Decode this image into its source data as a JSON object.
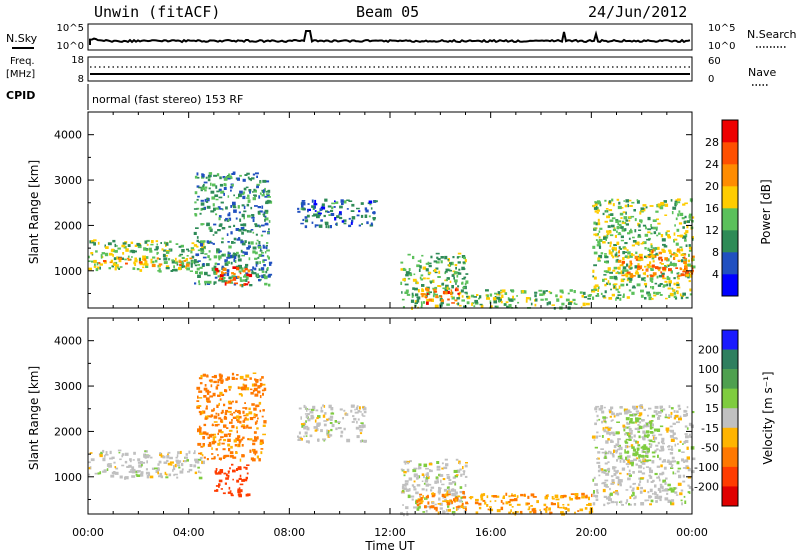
{
  "header": {
    "station": "Unwin (fitACF)",
    "beam": "Beam 05",
    "date": "24/Jun/2012"
  },
  "sky_panel": {
    "left_label": "N.Sky",
    "right_label": "N.Search",
    "left_ticks": [
      "10^5",
      "10^0"
    ],
    "right_ticks": [
      "10^5",
      "10^0"
    ]
  },
  "freq_panel": {
    "left_label_1": "Freq.",
    "left_label_2": "[MHz]",
    "right_label": "Nave",
    "left_ticks": [
      "18",
      "8"
    ],
    "right_ticks": [
      "60",
      "0"
    ]
  },
  "cpid": {
    "label": "CPID",
    "text": "normal (fast stereo) 153 RF"
  },
  "colors": {
    "power_scale": [
      "#0000ff",
      "#2050c0",
      "#2e8b57",
      "#5bc05b",
      "#ffcc00",
      "#ff8c00",
      "#ff5000",
      "#ee0000"
    ],
    "velocity_scale": [
      "#1a1aff",
      "#2f7f5f",
      "#4fa04f",
      "#7fcc3f",
      "#c0c0c0",
      "#ffb400",
      "#ff7800",
      "#ff3c00",
      "#e00000"
    ]
  },
  "chart_data": [
    {
      "type": "heatmap",
      "name": "power",
      "ylabel": "Slant Range [km]",
      "ylim": [
        180,
        4500
      ],
      "yticks": [
        1000,
        2000,
        3000,
        4000
      ],
      "xlim": [
        0,
        24
      ],
      "colorbar": {
        "label": "Power [dB]",
        "range": [
          0,
          32
        ],
        "ticks": [
          4,
          8,
          12,
          16,
          20,
          24,
          28
        ]
      },
      "regions": [
        {
          "t0": 0.0,
          "t1": 4.6,
          "r0": 1000,
          "r1": 1700,
          "value": 14
        },
        {
          "t0": 0.0,
          "t1": 4.2,
          "r0": 1150,
          "r1": 1300,
          "value": 20
        },
        {
          "t0": 4.2,
          "t1": 7.2,
          "r0": 700,
          "r1": 3200,
          "value": 10
        },
        {
          "t0": 5.0,
          "t1": 6.4,
          "r0": 700,
          "r1": 1100,
          "value": 25
        },
        {
          "t0": 8.3,
          "t1": 11.4,
          "r0": 2000,
          "r1": 2600,
          "value": 8
        },
        {
          "t0": 12.4,
          "t1": 15.0,
          "r0": 200,
          "r1": 1400,
          "value": 13
        },
        {
          "t0": 13.2,
          "t1": 14.8,
          "r0": 300,
          "r1": 650,
          "value": 24
        },
        {
          "t0": 15.0,
          "t1": 20.0,
          "r0": 200,
          "r1": 600,
          "value": 14
        },
        {
          "t0": 20.0,
          "t1": 24.0,
          "r0": 400,
          "r1": 2600,
          "value": 14
        },
        {
          "t0": 21.0,
          "t1": 24.0,
          "r0": 900,
          "r1": 1500,
          "value": 22
        }
      ]
    },
    {
      "type": "heatmap",
      "name": "velocity",
      "ylabel": "Slant Range [km]",
      "xlabel": "Time UT",
      "ylim": [
        180,
        4500
      ],
      "yticks": [
        1000,
        2000,
        3000,
        4000
      ],
      "xlim": [
        0,
        24
      ],
      "xtick_labels": [
        "00:00",
        "04:00",
        "08:00",
        "12:00",
        "16:00",
        "20:00",
        "00:00"
      ],
      "colorbar": {
        "label": "Velocity [m s⁻¹]",
        "ticks": [
          "200",
          "100",
          "50",
          "15",
          "-15",
          "-50",
          "-100",
          "-200"
        ]
      },
      "regions": [
        {
          "t0": 0.0,
          "t1": 4.6,
          "r0": 1000,
          "r1": 1600,
          "value": 0
        },
        {
          "t0": 4.3,
          "t1": 7.0,
          "r0": 1400,
          "r1": 3300,
          "value": -60
        },
        {
          "t0": 5.0,
          "t1": 6.4,
          "r0": 600,
          "r1": 1300,
          "value": -180
        },
        {
          "t0": 8.3,
          "t1": 11.0,
          "r0": 1800,
          "r1": 2600,
          "value": 0
        },
        {
          "t0": 12.4,
          "t1": 15.0,
          "r0": 200,
          "r1": 1400,
          "value": 0
        },
        {
          "t0": 13.0,
          "t1": 15.0,
          "r0": 300,
          "r1": 700,
          "value": -60
        },
        {
          "t0": 15.0,
          "t1": 20.0,
          "r0": 200,
          "r1": 650,
          "value": -40
        },
        {
          "t0": 20.0,
          "t1": 24.0,
          "r0": 400,
          "r1": 2600,
          "value": 0
        },
        {
          "t0": 21.3,
          "t1": 22.5,
          "r0": 1300,
          "r1": 2400,
          "value": 30
        }
      ]
    }
  ]
}
